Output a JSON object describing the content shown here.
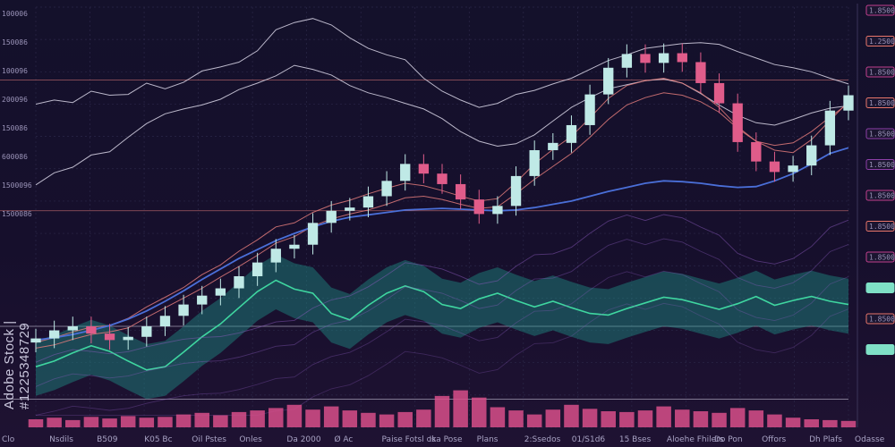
{
  "watermark": "Adobe Stock | #1225348729",
  "colors": {
    "background": "#120f26",
    "grid": "#2b2748",
    "candle_up": "#bfe9e6",
    "candle_down": "#e05c8a",
    "band_teal": "#1f8f86",
    "teal_line": "#3fd6a0",
    "pink_volume": "#d84f8a",
    "blue_line": "#4a6fd8",
    "red_line": "#e07a7a",
    "white_line": "#d9d6e8",
    "badge_pink": "#c2408e",
    "badge_orange": "#e8766a",
    "badge_teal": "#7fe0c6"
  },
  "chart_data": {
    "type": "line",
    "title": "",
    "xlabel": "",
    "ylabel": "",
    "left_axis_labels": [
      "100006",
      "150086",
      "100096",
      "200096",
      "150086",
      "600086",
      "1500096",
      "1500086"
    ],
    "right_axis_badges": [
      {
        "text": "1.8500.008",
        "color": "pink"
      },
      {
        "text": "1.2500.000",
        "color": "orange"
      },
      {
        "text": "1.8500.000",
        "color": "pink"
      },
      {
        "text": "1.8500.000",
        "color": "orange"
      },
      {
        "text": "1.8500.000",
        "color": "purple"
      },
      {
        "text": "1.8500.000",
        "color": "purple"
      },
      {
        "text": "1.8500.000",
        "color": "pink"
      },
      {
        "text": "1.8500.000",
        "color": "orange"
      },
      {
        "text": "1.8500.000",
        "color": "pink"
      },
      {
        "text": "",
        "color": "teal"
      },
      {
        "text": "1.8500.000",
        "color": "orange"
      },
      {
        "text": "",
        "color": "teal"
      }
    ],
    "x_axis_labels": [
      "Clo",
      "Nsdils",
      "B509",
      "K05 Bc",
      "Oil Pstes",
      "Onles",
      "Da 2000",
      "Ø Ac",
      "Paise Fotsl os",
      "Ika Pose",
      "Plans",
      "2:Ssedos",
      "01/S1d6",
      "15 Bses",
      "Aloehe Fhilers",
      "Do Pon",
      "Offors",
      "Dh Plafs",
      "Odasse"
    ],
    "price": [
      11,
      12,
      12.5,
      11.6,
      10.8,
      11.2,
      12.5,
      13.8,
      15.2,
      16.3,
      17.2,
      18.7,
      20.4,
      22.1,
      22.6,
      25.3,
      26.8,
      27.2,
      28.6,
      30.5,
      32.6,
      31.4,
      30.1,
      28.2,
      26.4,
      27.4,
      31.1,
      34.3,
      35.2,
      37.4,
      41.2,
      44.5,
      46.2,
      45.1,
      46.3,
      45.2,
      42.6,
      40.1,
      35.3,
      32.9,
      31.6,
      32.4,
      34.9,
      39.2,
      41.1
    ],
    "teal_series": [
      7.5,
      8.2,
      9.2,
      10.1,
      9.4,
      8.2,
      7.1,
      7.5,
      9.3,
      11.2,
      12.8,
      14.8,
      16.8,
      18.2,
      17.1,
      16.6,
      14.1,
      13.3,
      15.1,
      16.6,
      17.5,
      16.8,
      15.2,
      14.7,
      15.9,
      16.6,
      15.7,
      14.9,
      15.6,
      14.8,
      14.1,
      13.9,
      14.7,
      15.4,
      16.1,
      15.8,
      15.2,
      14.6,
      15.3,
      16.2,
      15.1,
      15.7,
      16.2,
      15.6,
      15.2
    ],
    "volume": [
      1,
      1.2,
      0.9,
      1.3,
      1.1,
      1.4,
      1.2,
      1.3,
      1.6,
      1.8,
      1.5,
      1.9,
      2.1,
      2.4,
      2.8,
      2.2,
      2.6,
      2.1,
      1.8,
      1.6,
      1.9,
      2.2,
      3.9,
      4.6,
      3.7,
      2.5,
      2.1,
      1.6,
      2.2,
      2.8,
      2.3,
      2.0,
      1.9,
      2.1,
      2.6,
      2.2,
      2.0,
      1.8,
      2.4,
      2.1,
      1.6,
      1.2,
      1.0,
      0.9,
      0.8
    ],
    "white_overlays": [
      [
        40,
        40.5,
        40.2,
        41.6,
        41.1,
        41.2,
        42.6,
        41.9,
        42.7,
        44.1,
        44.6,
        45.2,
        46.6,
        49.2,
        50.1,
        50.6,
        49.8,
        48.2,
        46.9,
        46.1,
        45.5,
        43.2,
        41.6,
        40.5,
        39.6,
        40.1,
        41.2,
        41.7,
        42.5,
        43.2,
        44.3,
        45.4,
        46.1,
        46.9,
        47.2,
        47.5,
        47.6,
        47.4,
        46.5,
        45.7,
        44.9,
        44.5,
        44.0,
        43.2,
        42.5
      ],
      [
        30,
        31.5,
        32.2,
        33.7,
        34.1,
        35.9,
        37.6,
        38.8,
        39.4,
        39.9,
        40.6,
        41.8,
        42.6,
        43.5,
        44.8,
        44.3,
        43.6,
        42.3,
        41.4,
        40.8,
        40.1,
        39.4,
        38.2,
        36.6,
        35.4,
        34.8,
        35.1,
        36.2,
        37.9,
        39.6,
        40.8,
        41.9,
        42.4,
        42.9,
        43.1,
        42.6,
        41.3,
        39.9,
        38.6,
        37.7,
        37.4,
        38.1,
        38.9,
        39.5,
        39.8
      ]
    ],
    "red_overlays": [
      [
        10.5,
        11.1,
        11.8,
        12.4,
        12.6,
        13.5,
        14.9,
        16.1,
        17.3,
        18.9,
        20.1,
        21.8,
        23.2,
        24.8,
        25.3,
        26.6,
        27.5,
        28.1,
        28.9,
        29.6,
        30.2,
        29.9,
        29.3,
        28.6,
        28.0,
        28.3,
        30.3,
        32.6,
        34.4,
        36.0,
        38.3,
        40.7,
        42.3,
        42.9,
        43.2,
        42.6,
        41.4,
        39.6,
        37.2,
        35.4,
        34.3,
        34.0,
        35.6,
        38.0,
        40.3
      ],
      [
        9.8,
        10.2,
        10.9,
        11.5,
        11.8,
        12.3,
        13.6,
        14.8,
        16.0,
        17.2,
        18.6,
        19.9,
        21.3,
        22.8,
        23.6,
        24.9,
        25.8,
        26.4,
        26.9,
        27.6,
        28.4,
        28.6,
        28.2,
        27.6,
        27.1,
        27.3,
        28.9,
        30.7,
        32.3,
        33.9,
        35.9,
        38.1,
        39.9,
        40.8,
        41.4,
        41.1,
        40.3,
        39.0,
        37.0,
        35.4,
        34.9,
        35.2,
        36.6,
        38.4,
        40.1
      ]
    ],
    "blue_series": [
      10.8,
      11.1,
      11.5,
      12.0,
      12.6,
      13.4,
      14.4,
      15.6,
      16.9,
      18.3,
      19.6,
      20.9,
      22.0,
      23.1,
      24.0,
      24.8,
      25.5,
      26.0,
      26.3,
      26.6,
      26.9,
      27.0,
      27.1,
      27.0,
      26.9,
      26.8,
      26.9,
      27.2,
      27.6,
      28.0,
      28.6,
      29.2,
      29.7,
      30.2,
      30.5,
      30.4,
      30.2,
      29.9,
      29.7,
      29.8,
      30.5,
      31.4,
      32.6,
      33.9,
      34.6
    ]
  }
}
